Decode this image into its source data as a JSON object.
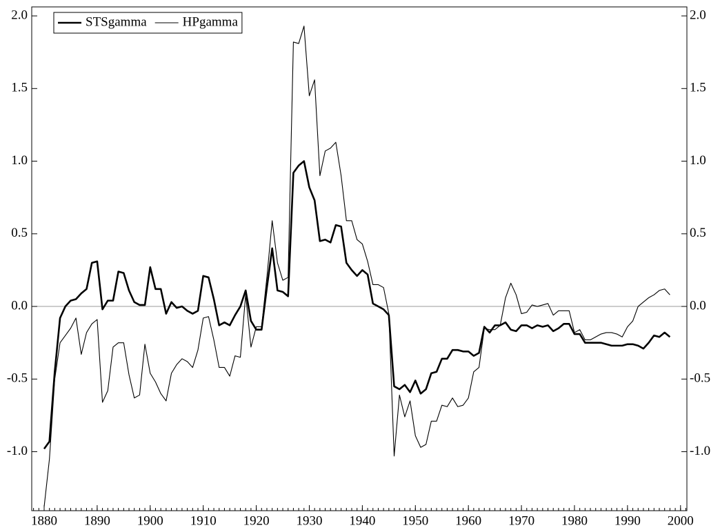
{
  "chart_data": {
    "type": "line",
    "x": [
      1880,
      1881,
      1882,
      1883,
      1884,
      1885,
      1886,
      1887,
      1888,
      1889,
      1890,
      1891,
      1892,
      1893,
      1894,
      1895,
      1896,
      1897,
      1898,
      1899,
      1900,
      1901,
      1902,
      1903,
      1904,
      1905,
      1906,
      1907,
      1908,
      1909,
      1910,
      1911,
      1912,
      1913,
      1914,
      1915,
      1916,
      1917,
      1918,
      1919,
      1920,
      1921,
      1922,
      1923,
      1924,
      1925,
      1926,
      1927,
      1928,
      1929,
      1930,
      1931,
      1932,
      1933,
      1934,
      1935,
      1936,
      1937,
      1938,
      1939,
      1940,
      1941,
      1942,
      1943,
      1944,
      1945,
      1946,
      1947,
      1948,
      1949,
      1950,
      1951,
      1952,
      1953,
      1954,
      1955,
      1956,
      1957,
      1958,
      1959,
      1960,
      1961,
      1962,
      1963,
      1964,
      1965,
      1966,
      1967,
      1968,
      1969,
      1970,
      1971,
      1972,
      1973,
      1974,
      1975,
      1976,
      1977,
      1978,
      1979,
      1980,
      1981,
      1982,
      1983,
      1984,
      1985,
      1986,
      1987,
      1988,
      1989,
      1990,
      1991,
      1992,
      1993,
      1994,
      1995,
      1996,
      1997,
      1998
    ],
    "series": [
      {
        "name": "STSgamma",
        "color": "#000000",
        "line_width": 2.6,
        "values": [
          -0.98,
          -0.93,
          -0.45,
          -0.08,
          0.0,
          0.04,
          0.05,
          0.09,
          0.12,
          0.3,
          0.31,
          -0.02,
          0.04,
          0.04,
          0.24,
          0.23,
          0.11,
          0.03,
          0.01,
          0.01,
          0.27,
          0.12,
          0.12,
          -0.05,
          0.03,
          -0.01,
          0.0,
          -0.03,
          -0.05,
          -0.03,
          0.21,
          0.2,
          0.05,
          -0.13,
          -0.11,
          -0.13,
          -0.06,
          0.0,
          0.11,
          -0.1,
          -0.16,
          -0.16,
          0.13,
          0.4,
          0.11,
          0.1,
          0.07,
          0.92,
          0.97,
          1.0,
          0.82,
          0.73,
          0.45,
          0.46,
          0.44,
          0.56,
          0.55,
          0.3,
          0.25,
          0.21,
          0.25,
          0.22,
          0.02,
          0.0,
          -0.02,
          -0.06,
          -0.55,
          -0.57,
          -0.54,
          -0.59,
          -0.51,
          -0.6,
          -0.57,
          -0.46,
          -0.45,
          -0.36,
          -0.36,
          -0.3,
          -0.3,
          -0.31,
          -0.31,
          -0.34,
          -0.32,
          -0.14,
          -0.18,
          -0.13,
          -0.13,
          -0.11,
          -0.16,
          -0.17,
          -0.13,
          -0.13,
          -0.15,
          -0.13,
          -0.14,
          -0.13,
          -0.17,
          -0.15,
          -0.12,
          -0.12,
          -0.19,
          -0.19,
          -0.25,
          -0.25,
          -0.25,
          -0.25,
          -0.26,
          -0.27,
          -0.27,
          -0.27,
          -0.26,
          -0.26,
          -0.27,
          -0.29,
          -0.25,
          -0.2,
          -0.21,
          -0.18,
          -0.21
        ]
      },
      {
        "name": "HPgamma",
        "color": "#000000",
        "line_width": 1.1,
        "values": [
          -1.38,
          -1.05,
          -0.5,
          -0.25,
          -0.2,
          -0.15,
          -0.08,
          -0.33,
          -0.18,
          -0.12,
          -0.09,
          -0.66,
          -0.58,
          -0.28,
          -0.25,
          -0.25,
          -0.47,
          -0.63,
          -0.61,
          -0.26,
          -0.46,
          -0.52,
          -0.6,
          -0.65,
          -0.46,
          -0.4,
          -0.36,
          -0.38,
          -0.42,
          -0.3,
          -0.08,
          -0.07,
          -0.23,
          -0.42,
          -0.42,
          -0.48,
          -0.34,
          -0.35,
          0.08,
          -0.28,
          -0.14,
          -0.14,
          0.2,
          0.59,
          0.3,
          0.18,
          0.2,
          1.82,
          1.81,
          1.93,
          1.45,
          1.56,
          0.9,
          1.07,
          1.09,
          1.13,
          0.9,
          0.59,
          0.59,
          0.46,
          0.43,
          0.31,
          0.15,
          0.15,
          0.13,
          -0.05,
          -1.03,
          -0.61,
          -0.76,
          -0.65,
          -0.89,
          -0.97,
          -0.95,
          -0.79,
          -0.79,
          -0.68,
          -0.69,
          -0.63,
          -0.69,
          -0.68,
          -0.63,
          -0.45,
          -0.42,
          -0.15,
          -0.16,
          -0.16,
          -0.13,
          0.06,
          0.16,
          0.08,
          -0.05,
          -0.04,
          0.01,
          0.0,
          0.01,
          0.02,
          -0.06,
          -0.03,
          -0.03,
          -0.03,
          -0.18,
          -0.16,
          -0.23,
          -0.23,
          -0.21,
          -0.19,
          -0.18,
          -0.18,
          -0.19,
          -0.21,
          -0.14,
          -0.1,
          0.0,
          0.03,
          0.06,
          0.08,
          0.11,
          0.12,
          0.08
        ]
      }
    ],
    "xlim": [
      1877.66,
      2001.2
    ],
    "xticks": [
      1880,
      1890,
      1900,
      1910,
      1920,
      1930,
      1940,
      1950,
      1960,
      1970,
      1980,
      1990,
      2000
    ],
    "ylim": [
      -1.406,
      2.062
    ],
    "yticks": [
      {
        "value": -1,
        "label": "-1.0"
      },
      -0.5,
      {
        "value": 0,
        "label": "0.0"
      },
      0.5,
      {
        "value": 1,
        "label": "1.0"
      },
      1.5,
      {
        "value": 2,
        "label": "2.0"
      }
    ],
    "reference_line": 0,
    "reference_color": "#999999",
    "legend": "top-left"
  }
}
